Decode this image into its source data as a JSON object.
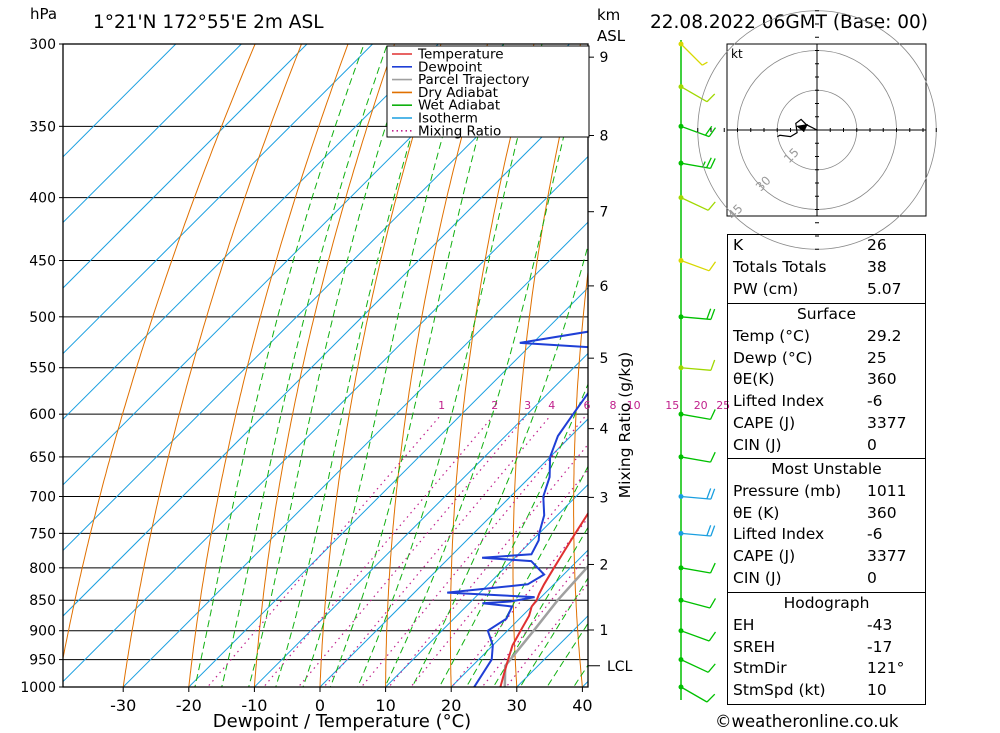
{
  "header": {
    "location": "1°21'N  172°55'E  2m  ASL",
    "datetime": "22.08.2022  06GMT  (Base: 00)",
    "pressure_unit": "hPa",
    "height_unit_1": "km",
    "height_unit_2": "ASL"
  },
  "legend": [
    {
      "label": "Temperature",
      "color": "#e03030",
      "style": "solid"
    },
    {
      "label": "Dewpoint",
      "color": "#1f3fd6",
      "style": "solid"
    },
    {
      "label": "Parcel Trajectory",
      "color": "#a0a0a0",
      "style": "solid"
    },
    {
      "label": "Dry Adiabat",
      "color": "#e07000",
      "style": "solid"
    },
    {
      "label": "Wet Adiabat",
      "color": "#10b010",
      "style": "solid"
    },
    {
      "label": "Isotherm",
      "color": "#1a9fe0",
      "style": "solid"
    },
    {
      "label": "Mixing Ratio",
      "color": "#c0208c",
      "style": "dotted"
    }
  ],
  "chart_data": {
    "type": "skew-t log-p",
    "xlabel": "Dewpoint / Temperature (°C)",
    "ylabel_right": "Mixing Ratio (g/kg)",
    "x_ticks": [
      -30,
      -20,
      -10,
      0,
      10,
      20,
      30,
      40
    ],
    "x_range": [
      -40,
      40
    ],
    "pressure_levels": [
      300,
      350,
      400,
      450,
      500,
      550,
      600,
      650,
      700,
      750,
      800,
      850,
      900,
      950,
      1000
    ],
    "height_ticks_km": [
      1,
      2,
      3,
      4,
      5,
      6,
      7,
      8,
      9
    ],
    "lcl_label": "LCL",
    "lcl_pressure": 961,
    "mixing_ratio_labels": [
      "1",
      "2",
      "3",
      "4",
      "6",
      "8",
      "10",
      "15",
      "20",
      "25"
    ],
    "temperature": [
      [
        1013,
        29.2
      ],
      [
        1000,
        27.5
      ],
      [
        975,
        26
      ],
      [
        950,
        24.5
      ],
      [
        925,
        23
      ],
      [
        900,
        22
      ],
      [
        875,
        21
      ],
      [
        860,
        20
      ],
      [
        850,
        19.8
      ],
      [
        840,
        19.2
      ],
      [
        825,
        18.5
      ],
      [
        800,
        17.5
      ],
      [
        775,
        16.5
      ],
      [
        750,
        15.5
      ],
      [
        725,
        14.5
      ],
      [
        700,
        13.5
      ],
      [
        675,
        12.5
      ],
      [
        650,
        11
      ],
      [
        625,
        9.5
      ],
      [
        600,
        8
      ],
      [
        575,
        6.5
      ],
      [
        550,
        5
      ],
      [
        525,
        3
      ],
      [
        500,
        0.5
      ],
      [
        475,
        -1.5
      ],
      [
        450,
        -4
      ],
      [
        425,
        -7
      ],
      [
        400,
        -9
      ],
      [
        375,
        -12
      ],
      [
        350,
        -16
      ],
      [
        325,
        -20
      ],
      [
        300,
        -25
      ]
    ],
    "dewpoint": [
      [
        1013,
        25
      ],
      [
        1000,
        23.5
      ],
      [
        950,
        22
      ],
      [
        925,
        20
      ],
      [
        900,
        17
      ],
      [
        880,
        18
      ],
      [
        860,
        17
      ],
      [
        855,
        12
      ],
      [
        852,
        16
      ],
      [
        845,
        19
      ],
      [
        838,
        5
      ],
      [
        825,
        16
      ],
      [
        810,
        17
      ],
      [
        790,
        13
      ],
      [
        785,
        5
      ],
      [
        780,
        12
      ],
      [
        760,
        11
      ],
      [
        750,
        10
      ],
      [
        725,
        8
      ],
      [
        700,
        5
      ],
      [
        675,
        3
      ],
      [
        650,
        0
      ],
      [
        625,
        -2
      ],
      [
        600,
        -3
      ],
      [
        575,
        -4
      ],
      [
        550,
        -6
      ],
      [
        530,
        -9
      ],
      [
        525,
        -22
      ],
      [
        510,
        -10
      ],
      [
        500,
        -12
      ],
      [
        485,
        -12
      ],
      [
        450,
        -18
      ],
      [
        425,
        -18
      ],
      [
        400,
        -23
      ],
      [
        380,
        -27
      ],
      [
        360,
        -30
      ],
      [
        350,
        -34
      ],
      [
        325,
        -38
      ],
      [
        300,
        -43
      ]
    ],
    "parcel": [
      [
        1013,
        29.2
      ],
      [
        961,
        25
      ],
      [
        900,
        24
      ],
      [
        850,
        23
      ],
      [
        800,
        22.5
      ],
      [
        750,
        22
      ],
      [
        700,
        21
      ],
      [
        650,
        20
      ],
      [
        600,
        18.8
      ],
      [
        550,
        17
      ],
      [
        500,
        14.5
      ],
      [
        450,
        11.2
      ],
      [
        400,
        6.5
      ],
      [
        350,
        0.5
      ],
      [
        300,
        -8
      ]
    ],
    "wind_barbs": [
      {
        "p": 1000,
        "dir": 120,
        "speed_kt": 10,
        "color": "#00c000"
      },
      {
        "p": 950,
        "dir": 115,
        "speed_kt": 10,
        "color": "#00c000"
      },
      {
        "p": 900,
        "dir": 110,
        "speed_kt": 10,
        "color": "#00c000"
      },
      {
        "p": 850,
        "dir": 105,
        "speed_kt": 10,
        "color": "#00c000"
      },
      {
        "p": 800,
        "dir": 100,
        "speed_kt": 10,
        "color": "#00c000"
      },
      {
        "p": 750,
        "dir": 95,
        "speed_kt": 20,
        "color": "#1a9fe0"
      },
      {
        "p": 700,
        "dir": 95,
        "speed_kt": 20,
        "color": "#1a9fe0"
      },
      {
        "p": 650,
        "dir": 100,
        "speed_kt": 10,
        "color": "#00c000"
      },
      {
        "p": 600,
        "dir": 100,
        "speed_kt": 10,
        "color": "#00c000"
      },
      {
        "p": 550,
        "dir": 95,
        "speed_kt": 10,
        "color": "#a0d800"
      },
      {
        "p": 500,
        "dir": 95,
        "speed_kt": 20,
        "color": "#00c000"
      },
      {
        "p": 450,
        "dir": 110,
        "speed_kt": 10,
        "color": "#d8d800"
      },
      {
        "p": 400,
        "dir": 115,
        "speed_kt": 10,
        "color": "#a0d800"
      },
      {
        "p": 375,
        "dir": 100,
        "speed_kt": 25,
        "color": "#00c000"
      },
      {
        "p": 350,
        "dir": 110,
        "speed_kt": 20,
        "color": "#00c000"
      },
      {
        "p": 325,
        "dir": 120,
        "speed_kt": 10,
        "color": "#a0d800"
      },
      {
        "p": 300,
        "dir": 135,
        "speed_kt": 5,
        "color": "#d8d800"
      }
    ],
    "hodograph": {
      "unit_label": "kt",
      "ring_labels": [
        "15",
        "30",
        "45"
      ],
      "trace": [
        [
          0,
          0
        ],
        [
          -8,
          -4
        ],
        [
          -12,
          -8
        ],
        [
          -16,
          -5
        ],
        [
          -15,
          2
        ],
        [
          -20,
          5
        ],
        [
          -28,
          4
        ],
        [
          -30,
          5
        ]
      ]
    }
  },
  "indices": {
    "general": [
      {
        "label": "K",
        "value": "26"
      },
      {
        "label": "Totals Totals",
        "value": "38"
      },
      {
        "label": "PW (cm)",
        "value": "5.07"
      }
    ],
    "surface": {
      "title": "Surface",
      "rows": [
        {
          "label": "Temp (°C)",
          "value": "29.2"
        },
        {
          "label": "Dewp (°C)",
          "value": "25"
        },
        {
          "label": "θE(K)",
          "value": "360"
        },
        {
          "label": "Lifted Index",
          "value": "-6"
        },
        {
          "label": "CAPE (J)",
          "value": "3377"
        },
        {
          "label": "CIN (J)",
          "value": "0"
        }
      ]
    },
    "most_unstable": {
      "title": "Most Unstable",
      "rows": [
        {
          "label": "Pressure (mb)",
          "value": "1011"
        },
        {
          "label": "θE (K)",
          "value": "360"
        },
        {
          "label": "Lifted Index",
          "value": "-6"
        },
        {
          "label": "CAPE (J)",
          "value": "3377"
        },
        {
          "label": "CIN (J)",
          "value": "0"
        }
      ]
    },
    "hodograph": {
      "title": "Hodograph",
      "rows": [
        {
          "label": "EH",
          "value": "-43"
        },
        {
          "label": "SREH",
          "value": "-17"
        },
        {
          "label": "StmDir",
          "value": "121°"
        },
        {
          "label": "StmSpd (kt)",
          "value": "10"
        }
      ]
    }
  },
  "copyright": "©weatheronline.co.uk"
}
